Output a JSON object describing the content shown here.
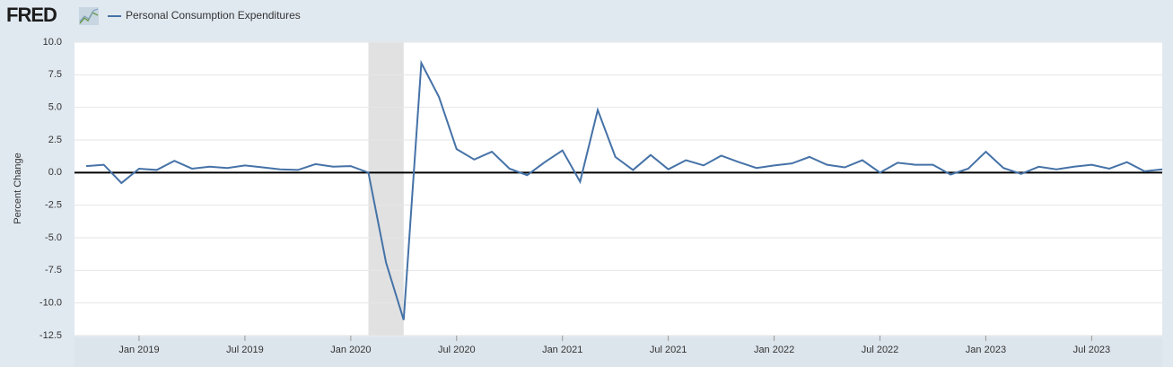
{
  "logo": "FRED",
  "chart_data": {
    "type": "line",
    "y_label": "Percent Change",
    "x": [
      "2018-10",
      "2018-11",
      "2018-12",
      "2019-01",
      "2019-02",
      "2019-03",
      "2019-04",
      "2019-05",
      "2019-06",
      "2019-07",
      "2019-08",
      "2019-09",
      "2019-10",
      "2019-11",
      "2019-12",
      "2020-01",
      "2020-02",
      "2020-03",
      "2020-04",
      "2020-05",
      "2020-06",
      "2020-07",
      "2020-08",
      "2020-09",
      "2020-10",
      "2020-11",
      "2020-12",
      "2021-01",
      "2021-02",
      "2021-03",
      "2021-04",
      "2021-05",
      "2021-06",
      "2021-07",
      "2021-08",
      "2021-09",
      "2021-10",
      "2021-11",
      "2021-12",
      "2022-01",
      "2022-02",
      "2022-03",
      "2022-04",
      "2022-05",
      "2022-06",
      "2022-07",
      "2022-08",
      "2022-09",
      "2022-10",
      "2022-11",
      "2022-12",
      "2023-01",
      "2023-02",
      "2023-03",
      "2023-04",
      "2023-05",
      "2023-06",
      "2023-07",
      "2023-08",
      "2023-09",
      "2023-10",
      "2023-11"
    ],
    "series": [
      {
        "name": "Personal Consumption Expenditures",
        "color": "#4572a7",
        "values": [
          0.5,
          0.6,
          -0.8,
          0.3,
          0.2,
          0.9,
          0.3,
          0.45,
          0.35,
          0.55,
          0.4,
          0.25,
          0.2,
          0.65,
          0.45,
          0.5,
          0.0,
          -6.9,
          -11.3,
          8.4,
          5.8,
          1.8,
          1.0,
          1.6,
          0.3,
          -0.2,
          0.8,
          1.7,
          -0.7,
          4.8,
          1.2,
          0.2,
          1.35,
          0.25,
          0.95,
          0.55,
          1.3,
          0.8,
          0.35,
          0.55,
          0.7,
          1.2,
          0.6,
          0.4,
          0.95,
          0.0,
          0.75,
          0.6,
          0.6,
          -0.15,
          0.3,
          1.6,
          0.35,
          -0.1,
          0.45,
          0.25,
          0.45,
          0.6,
          0.3,
          0.8,
          0.1,
          0.25
        ]
      }
    ],
    "recessions": [
      {
        "start": "2020-02",
        "end": "2020-04"
      }
    ],
    "ylim": [
      -12.5,
      10
    ],
    "yticks": [
      {
        "value": 10,
        "label": "10.0"
      },
      7.5,
      {
        "value": 5,
        "label": "5.0"
      },
      2.5,
      {
        "value": 0,
        "label": "0.0"
      },
      -2.5,
      {
        "value": -5,
        "label": "-5.0"
      },
      -7.5,
      {
        "value": -10,
        "label": "-10.0"
      },
      -12.5
    ],
    "xticks": [
      {
        "value": "2019-01",
        "label": "Jan 2019"
      },
      {
        "value": "2019-07",
        "label": "Jul 2019"
      },
      {
        "value": "2020-01",
        "label": "Jan 2020"
      },
      {
        "value": "2020-07",
        "label": "Jul 2020"
      },
      {
        "value": "2021-01",
        "label": "Jan 2021"
      },
      {
        "value": "2021-07",
        "label": "Jul 2021"
      },
      {
        "value": "2022-01",
        "label": "Jan 2022"
      },
      {
        "value": "2022-07",
        "label": "Jul 2022"
      },
      {
        "value": "2023-01",
        "label": "Jan 2023"
      },
      {
        "value": "2023-07",
        "label": "Jul 2023"
      }
    ],
    "grid": true
  }
}
